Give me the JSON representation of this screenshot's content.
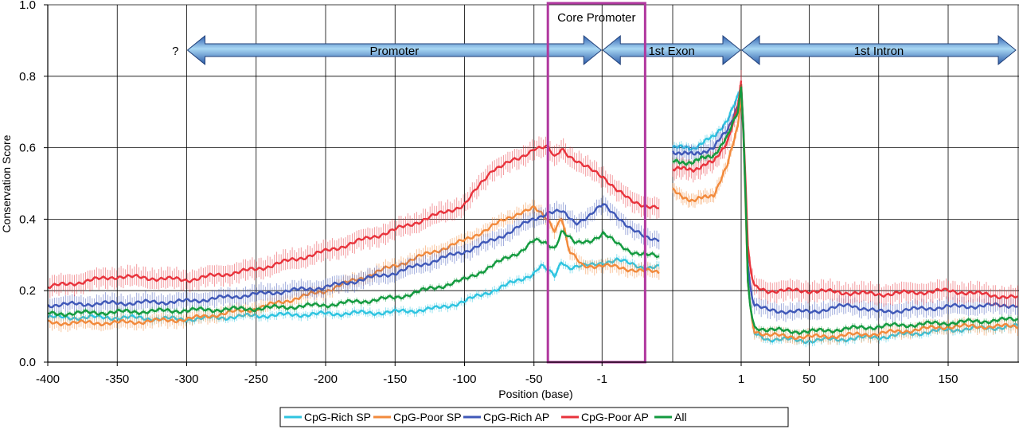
{
  "chart_data": {
    "type": "line",
    "title": "",
    "xlabel": "Position (base)",
    "ylabel": "Conservation Score",
    "ylim": [
      0,
      1.0
    ],
    "grid": true,
    "legend_position": "bottom-center",
    "y_ticks": [
      "0.0",
      "0.2",
      "0.4",
      "0.6",
      "0.8",
      "1.0"
    ],
    "x_ticks": [
      "-400",
      "-350",
      "-300",
      "-250",
      "-200",
      "-150",
      "-100",
      "-50",
      "-1",
      "1",
      "50",
      "100",
      "150"
    ],
    "segments": [
      {
        "name": "promoter",
        "x_range": [
          -400,
          40
        ]
      },
      {
        "name": "exon",
        "x_range": [
          0,
          1
        ]
      },
      {
        "name": "intron",
        "x_range": [
          1,
          200
        ]
      }
    ],
    "regions": [
      {
        "label": "Promoter",
        "from": [
          -300,
          "promoter"
        ],
        "to": [
          -1,
          "promoter"
        ]
      },
      {
        "label": "1st Exon",
        "from": [
          -1,
          "promoter"
        ],
        "to": [
          1,
          "intron"
        ]
      },
      {
        "label": "1st Intron",
        "from": [
          1,
          "intron"
        ],
        "to": [
          200,
          "intron"
        ]
      }
    ],
    "unknown_start_label": "?",
    "core_promoter": {
      "label": "Core Promoter",
      "from": -40,
      "to": 30
    },
    "series": [
      {
        "name": "CpG-Rich SP",
        "color": "#2ec4e0",
        "promoter": [
          [
            -400,
            0.125
          ],
          [
            -350,
            0.125
          ],
          [
            -300,
            0.12
          ],
          [
            -250,
            0.13
          ],
          [
            -200,
            0.135
          ],
          [
            -150,
            0.14
          ],
          [
            -120,
            0.15
          ],
          [
            -100,
            0.17
          ],
          [
            -80,
            0.2
          ],
          [
            -60,
            0.23
          ],
          [
            -50,
            0.25
          ],
          [
            -45,
            0.27
          ],
          [
            -40,
            0.255
          ],
          [
            -35,
            0.24
          ],
          [
            -30,
            0.285
          ],
          [
            -25,
            0.265
          ],
          [
            -10,
            0.27
          ],
          [
            0,
            0.28
          ],
          [
            10,
            0.285
          ],
          [
            20,
            0.275
          ],
          [
            30,
            0.265
          ],
          [
            40,
            0.265
          ]
        ],
        "exon": [
          [
            0,
            0.6
          ],
          [
            0.3,
            0.6
          ],
          [
            0.6,
            0.63
          ],
          [
            0.8,
            0.68
          ],
          [
            0.95,
            0.74
          ],
          [
            1,
            0.77
          ]
        ],
        "intron": [
          [
            1,
            0.77
          ],
          [
            3,
            0.62
          ],
          [
            6,
            0.2
          ],
          [
            10,
            0.08
          ],
          [
            20,
            0.065
          ],
          [
            50,
            0.06
          ],
          [
            100,
            0.07
          ],
          [
            150,
            0.09
          ],
          [
            200,
            0.1
          ]
        ]
      },
      {
        "name": "CpG-Poor SP",
        "color": "#f28a3c",
        "promoter": [
          [
            -400,
            0.11
          ],
          [
            -350,
            0.11
          ],
          [
            -300,
            0.12
          ],
          [
            -250,
            0.15
          ],
          [
            -200,
            0.2
          ],
          [
            -150,
            0.27
          ],
          [
            -100,
            0.34
          ],
          [
            -80,
            0.38
          ],
          [
            -60,
            0.42
          ],
          [
            -50,
            0.43
          ],
          [
            -40,
            0.4
          ],
          [
            -35,
            0.37
          ],
          [
            -30,
            0.41
          ],
          [
            -25,
            0.31
          ],
          [
            -15,
            0.27
          ],
          [
            0,
            0.27
          ],
          [
            20,
            0.26
          ],
          [
            40,
            0.25
          ]
        ],
        "exon": [
          [
            0,
            0.48
          ],
          [
            0.3,
            0.45
          ],
          [
            0.6,
            0.47
          ],
          [
            0.8,
            0.55
          ],
          [
            0.95,
            0.66
          ],
          [
            1,
            0.75
          ]
        ],
        "intron": [
          [
            1,
            0.75
          ],
          [
            3,
            0.6
          ],
          [
            6,
            0.2
          ],
          [
            10,
            0.09
          ],
          [
            20,
            0.075
          ],
          [
            50,
            0.07
          ],
          [
            100,
            0.08
          ],
          [
            150,
            0.1
          ],
          [
            200,
            0.1
          ]
        ]
      },
      {
        "name": "CpG-Rich AP",
        "color": "#3f58b8",
        "promoter": [
          [
            -400,
            0.16
          ],
          [
            -350,
            0.165
          ],
          [
            -300,
            0.17
          ],
          [
            -250,
            0.19
          ],
          [
            -200,
            0.21
          ],
          [
            -150,
            0.25
          ],
          [
            -100,
            0.31
          ],
          [
            -80,
            0.34
          ],
          [
            -60,
            0.38
          ],
          [
            -50,
            0.4
          ],
          [
            -40,
            0.42
          ],
          [
            -30,
            0.42
          ],
          [
            -20,
            0.39
          ],
          [
            -10,
            0.41
          ],
          [
            0,
            0.44
          ],
          [
            10,
            0.41
          ],
          [
            20,
            0.37
          ],
          [
            30,
            0.35
          ],
          [
            40,
            0.345
          ]
        ],
        "exon": [
          [
            0,
            0.59
          ],
          [
            0.3,
            0.58
          ],
          [
            0.6,
            0.6
          ],
          [
            0.8,
            0.65
          ],
          [
            0.95,
            0.72
          ],
          [
            1,
            0.77
          ]
        ],
        "intron": [
          [
            1,
            0.77
          ],
          [
            3,
            0.62
          ],
          [
            6,
            0.25
          ],
          [
            10,
            0.16
          ],
          [
            20,
            0.145
          ],
          [
            50,
            0.14
          ],
          [
            80,
            0.16
          ],
          [
            100,
            0.14
          ],
          [
            150,
            0.155
          ],
          [
            200,
            0.16
          ]
        ]
      },
      {
        "name": "CpG-Poor AP",
        "color": "#e8333c",
        "promoter": [
          [
            -400,
            0.21
          ],
          [
            -350,
            0.24
          ],
          [
            -300,
            0.23
          ],
          [
            -250,
            0.26
          ],
          [
            -200,
            0.31
          ],
          [
            -150,
            0.37
          ],
          [
            -100,
            0.44
          ],
          [
            -80,
            0.54
          ],
          [
            -60,
            0.57
          ],
          [
            -50,
            0.6
          ],
          [
            -40,
            0.6
          ],
          [
            -35,
            0.57
          ],
          [
            -30,
            0.6
          ],
          [
            -25,
            0.58
          ],
          [
            -15,
            0.55
          ],
          [
            0,
            0.52
          ],
          [
            10,
            0.48
          ],
          [
            20,
            0.45
          ],
          [
            30,
            0.44
          ],
          [
            40,
            0.43
          ]
        ],
        "exon": [
          [
            0,
            0.54
          ],
          [
            0.3,
            0.54
          ],
          [
            0.6,
            0.56
          ],
          [
            0.8,
            0.62
          ],
          [
            0.95,
            0.71
          ],
          [
            1,
            0.78
          ]
        ],
        "intron": [
          [
            1,
            0.78
          ],
          [
            3,
            0.63
          ],
          [
            6,
            0.3
          ],
          [
            10,
            0.21
          ],
          [
            20,
            0.2
          ],
          [
            50,
            0.2
          ],
          [
            100,
            0.19
          ],
          [
            150,
            0.2
          ],
          [
            200,
            0.18
          ]
        ]
      },
      {
        "name": "All",
        "color": "#139a3f",
        "promoter": [
          [
            -400,
            0.135
          ],
          [
            -350,
            0.14
          ],
          [
            -300,
            0.145
          ],
          [
            -250,
            0.15
          ],
          [
            -200,
            0.16
          ],
          [
            -150,
            0.18
          ],
          [
            -100,
            0.23
          ],
          [
            -80,
            0.27
          ],
          [
            -60,
            0.31
          ],
          [
            -50,
            0.34
          ],
          [
            -40,
            0.33
          ],
          [
            -35,
            0.32
          ],
          [
            -30,
            0.37
          ],
          [
            -20,
            0.33
          ],
          [
            -10,
            0.34
          ],
          [
            0,
            0.36
          ],
          [
            10,
            0.33
          ],
          [
            20,
            0.31
          ],
          [
            30,
            0.3
          ],
          [
            40,
            0.295
          ]
        ],
        "exon": [
          [
            0,
            0.56
          ],
          [
            0.3,
            0.56
          ],
          [
            0.6,
            0.58
          ],
          [
            0.8,
            0.63
          ],
          [
            0.95,
            0.7
          ],
          [
            1,
            0.77
          ]
        ],
        "intron": [
          [
            1,
            0.77
          ],
          [
            3,
            0.62
          ],
          [
            6,
            0.2
          ],
          [
            10,
            0.1
          ],
          [
            20,
            0.09
          ],
          [
            50,
            0.085
          ],
          [
            100,
            0.1
          ],
          [
            150,
            0.11
          ],
          [
            200,
            0.12
          ]
        ]
      }
    ]
  }
}
